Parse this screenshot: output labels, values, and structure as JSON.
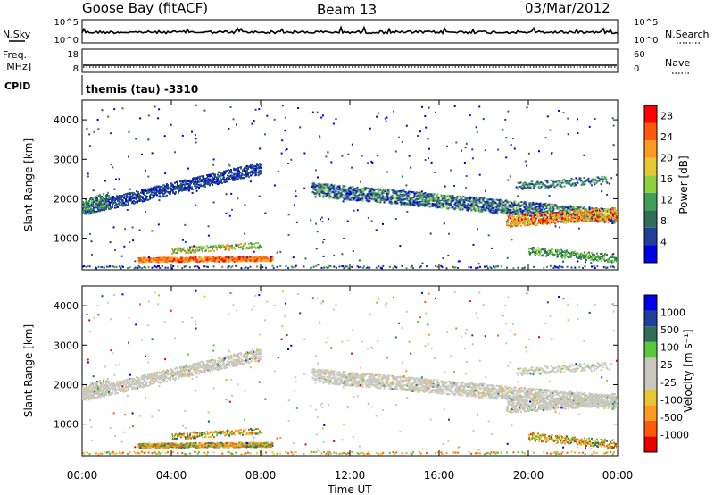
{
  "header": {
    "station": "Goose Bay (fitACF)",
    "beam": "Beam 13",
    "date": "03/Mar/2012"
  },
  "noise_panel": {
    "left_label": "N.Sky",
    "right_label": "N.Search",
    "left_ticks": [
      "10^5",
      "10^0"
    ],
    "right_ticks": [
      "10^5",
      "10^0"
    ]
  },
  "freq_panel": {
    "left_label_line1": "Freq.",
    "left_label_line2": "[MHz]",
    "right_label": "Nave",
    "left_ticks": [
      "18",
      "8"
    ],
    "right_ticks": [
      "60",
      "0"
    ]
  },
  "cpid": {
    "label": "CPID",
    "value": "themis (tau) -3310"
  },
  "time_axis": {
    "label": "Time UT",
    "ticks": [
      "00:00",
      "04:00",
      "08:00",
      "12:00",
      "16:00",
      "20:00",
      "00:00"
    ]
  },
  "colors": {
    "power_scale": [
      "#0000e6",
      "#1e3f9a",
      "#2f6f5a",
      "#3f9f5a",
      "#8fd040",
      "#e8c832",
      "#ff9a1e",
      "#ff5a0a",
      "#ff0000"
    ],
    "velocity_scale": [
      "#e60000",
      "#ff5a0a",
      "#ff9a1e",
      "#e8c832",
      "#c8c8c0",
      "#c8c8c0",
      "#5ac83c",
      "#2f6f5a",
      "#1e3f9a",
      "#0000e6"
    ],
    "ground_scatter": "#c8c8c0"
  },
  "chart_data": [
    {
      "type": "heatmap",
      "title": "Power",
      "xlabel": "Time UT",
      "ylabel": "Slant Range [km]",
      "xlim": [
        "00:00",
        "24:00"
      ],
      "ylim": [
        200,
        4500
      ],
      "y_ticks": [
        "1000",
        "2000",
        "3000",
        "4000"
      ],
      "colorbar": {
        "label": "Power [dB]",
        "ticks": [
          "4",
          "8",
          "12",
          "16",
          "20",
          "24",
          "28"
        ],
        "range": [
          0,
          30
        ]
      },
      "features": [
        {
          "name": "band_a",
          "start_hour": 0.0,
          "end_hour": 8.0,
          "range_start_km": 1700,
          "range_end_km": 2850,
          "power_db": 6
        },
        {
          "name": "band_b",
          "start_hour": 10.5,
          "end_hour": 24.0,
          "range_start_km": 2300,
          "range_end_km": 1550,
          "power_db": 14
        },
        {
          "name": "band_c",
          "start_hour": 19.5,
          "end_hour": 23.5,
          "range_start_km": 1450,
          "range_end_km": 1600,
          "power_db": 24
        },
        {
          "name": "near_range",
          "start_hour": 2.5,
          "end_hour": 8.0,
          "range_start_km": 480,
          "range_end_km": 480,
          "power_db": 22
        }
      ]
    },
    {
      "type": "heatmap",
      "title": "Velocity",
      "xlabel": "Time UT",
      "ylabel": "Slant Range [km]",
      "xlim": [
        "00:00",
        "24:00"
      ],
      "ylim": [
        200,
        4500
      ],
      "y_ticks": [
        "1000",
        "2000",
        "3000",
        "4000"
      ],
      "colorbar": {
        "label": "Velocity [m s⁻¹]",
        "ticks": [
          "1000",
          "500",
          "100",
          "25",
          "-25",
          "-100",
          "-500",
          "-1000"
        ]
      }
    }
  ]
}
